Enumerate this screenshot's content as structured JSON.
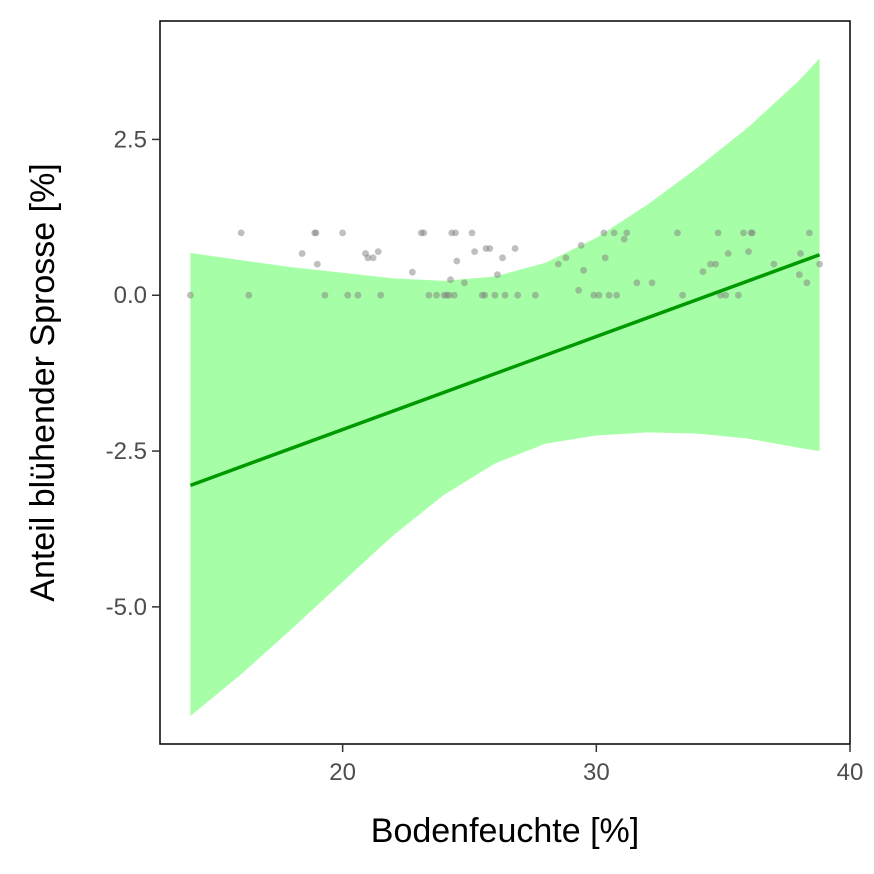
{
  "chart_data": {
    "type": "scatter",
    "title": "",
    "xlabel": "Bodenfeuchte [%]",
    "ylabel": "Anteil blühender Sprosse [%]",
    "xlim": [
      12.8,
      40
    ],
    "ylim": [
      -7.2,
      4.4
    ],
    "x_ticks": [
      20,
      30,
      40
    ],
    "x_tick_labels": [
      "20",
      "30",
      "40"
    ],
    "y_ticks": [
      2.5,
      0.0,
      -2.5,
      -5.0
    ],
    "y_tick_labels": [
      "2.5",
      "0.0",
      "-2.5",
      "-5.0"
    ],
    "grid": false,
    "colors": {
      "points": "#808080",
      "fit_line": "#009900",
      "confidence_band": "#a6ffa6"
    },
    "points": [
      {
        "x": 14.0,
        "y": 0.0
      },
      {
        "x": 16.0,
        "y": 1.0
      },
      {
        "x": 16.3,
        "y": 0.0
      },
      {
        "x": 18.4,
        "y": 0.67
      },
      {
        "x": 18.9,
        "y": 1.0
      },
      {
        "x": 18.95,
        "y": 1.0
      },
      {
        "x": 19.0,
        "y": 0.5
      },
      {
        "x": 19.3,
        "y": 0.0
      },
      {
        "x": 20.0,
        "y": 1.0
      },
      {
        "x": 20.2,
        "y": 0.0
      },
      {
        "x": 20.6,
        "y": 0.0
      },
      {
        "x": 20.9,
        "y": 0.67
      },
      {
        "x": 21.0,
        "y": 0.6
      },
      {
        "x": 21.2,
        "y": 0.6
      },
      {
        "x": 21.4,
        "y": 0.7
      },
      {
        "x": 21.5,
        "y": 0.0
      },
      {
        "x": 22.75,
        "y": 0.37
      },
      {
        "x": 23.1,
        "y": 1.0
      },
      {
        "x": 23.2,
        "y": 1.0
      },
      {
        "x": 23.4,
        "y": 0.0
      },
      {
        "x": 23.7,
        "y": 0.0
      },
      {
        "x": 24.0,
        "y": 0.0
      },
      {
        "x": 24.1,
        "y": 0.0
      },
      {
        "x": 24.2,
        "y": 0.0
      },
      {
        "x": 24.25,
        "y": 0.25
      },
      {
        "x": 24.3,
        "y": 1.0
      },
      {
        "x": 24.4,
        "y": 0.0
      },
      {
        "x": 24.45,
        "y": 1.0
      },
      {
        "x": 24.5,
        "y": 0.55
      },
      {
        "x": 24.8,
        "y": 0.2
      },
      {
        "x": 25.1,
        "y": 1.0
      },
      {
        "x": 25.2,
        "y": 0.7
      },
      {
        "x": 25.5,
        "y": 0.0
      },
      {
        "x": 25.6,
        "y": 0.0
      },
      {
        "x": 25.65,
        "y": 0.75
      },
      {
        "x": 25.8,
        "y": 0.75
      },
      {
        "x": 26.0,
        "y": 0.0
      },
      {
        "x": 26.1,
        "y": 0.33
      },
      {
        "x": 26.3,
        "y": 0.6
      },
      {
        "x": 26.4,
        "y": 0.0
      },
      {
        "x": 26.8,
        "y": 0.75
      },
      {
        "x": 26.9,
        "y": 0.0
      },
      {
        "x": 27.6,
        "y": 0.0
      },
      {
        "x": 28.5,
        "y": 0.5
      },
      {
        "x": 28.8,
        "y": 0.6
      },
      {
        "x": 29.3,
        "y": 0.08
      },
      {
        "x": 29.4,
        "y": 0.8
      },
      {
        "x": 29.5,
        "y": 0.4
      },
      {
        "x": 29.9,
        "y": 0.0
      },
      {
        "x": 30.1,
        "y": 0.0
      },
      {
        "x": 30.3,
        "y": 1.0
      },
      {
        "x": 30.35,
        "y": 0.6
      },
      {
        "x": 30.5,
        "y": 0.0
      },
      {
        "x": 30.7,
        "y": 1.0
      },
      {
        "x": 30.8,
        "y": 0.0
      },
      {
        "x": 31.1,
        "y": 0.9
      },
      {
        "x": 31.2,
        "y": 1.0
      },
      {
        "x": 31.6,
        "y": 0.2
      },
      {
        "x": 32.2,
        "y": 0.2
      },
      {
        "x": 33.2,
        "y": 1.0
      },
      {
        "x": 33.4,
        "y": 0.0
      },
      {
        "x": 34.2,
        "y": 0.38
      },
      {
        "x": 34.5,
        "y": 0.5
      },
      {
        "x": 34.7,
        "y": 0.5
      },
      {
        "x": 34.8,
        "y": 1.0
      },
      {
        "x": 34.9,
        "y": 0.0
      },
      {
        "x": 35.1,
        "y": 0.0
      },
      {
        "x": 35.2,
        "y": 0.67
      },
      {
        "x": 35.6,
        "y": 0.0
      },
      {
        "x": 35.8,
        "y": 1.0
      },
      {
        "x": 36.0,
        "y": 0.7
      },
      {
        "x": 36.1,
        "y": 1.0
      },
      {
        "x": 36.15,
        "y": 1.0
      },
      {
        "x": 37.0,
        "y": 0.5
      },
      {
        "x": 38.0,
        "y": 0.33
      },
      {
        "x": 38.05,
        "y": 0.67
      },
      {
        "x": 38.3,
        "y": 0.2
      },
      {
        "x": 38.4,
        "y": 1.0
      },
      {
        "x": 38.8,
        "y": 0.5
      }
    ],
    "fit_line": [
      {
        "x": 14.0,
        "y": -3.05
      },
      {
        "x": 38.8,
        "y": 0.65
      }
    ],
    "confidence_band": [
      {
        "x": 14.0,
        "lower": -6.75,
        "upper": 0.68
      },
      {
        "x": 16.0,
        "lower": -6.08,
        "upper": 0.56
      },
      {
        "x": 18.0,
        "lower": -5.35,
        "upper": 0.45
      },
      {
        "x": 20.0,
        "lower": -4.6,
        "upper": 0.36
      },
      {
        "x": 22.0,
        "lower": -3.85,
        "upper": 0.27
      },
      {
        "x": 24.0,
        "lower": -3.2,
        "upper": 0.23
      },
      {
        "x": 26.0,
        "lower": -2.7,
        "upper": 0.3
      },
      {
        "x": 28.0,
        "lower": -2.38,
        "upper": 0.52
      },
      {
        "x": 30.0,
        "lower": -2.25,
        "upper": 0.92
      },
      {
        "x": 32.0,
        "lower": -2.2,
        "upper": 1.45
      },
      {
        "x": 34.0,
        "lower": -2.22,
        "upper": 2.05
      },
      {
        "x": 36.0,
        "lower": -2.3,
        "upper": 2.7
      },
      {
        "x": 38.0,
        "lower": -2.45,
        "upper": 3.45
      },
      {
        "x": 38.8,
        "lower": -2.5,
        "upper": 3.8
      }
    ]
  }
}
